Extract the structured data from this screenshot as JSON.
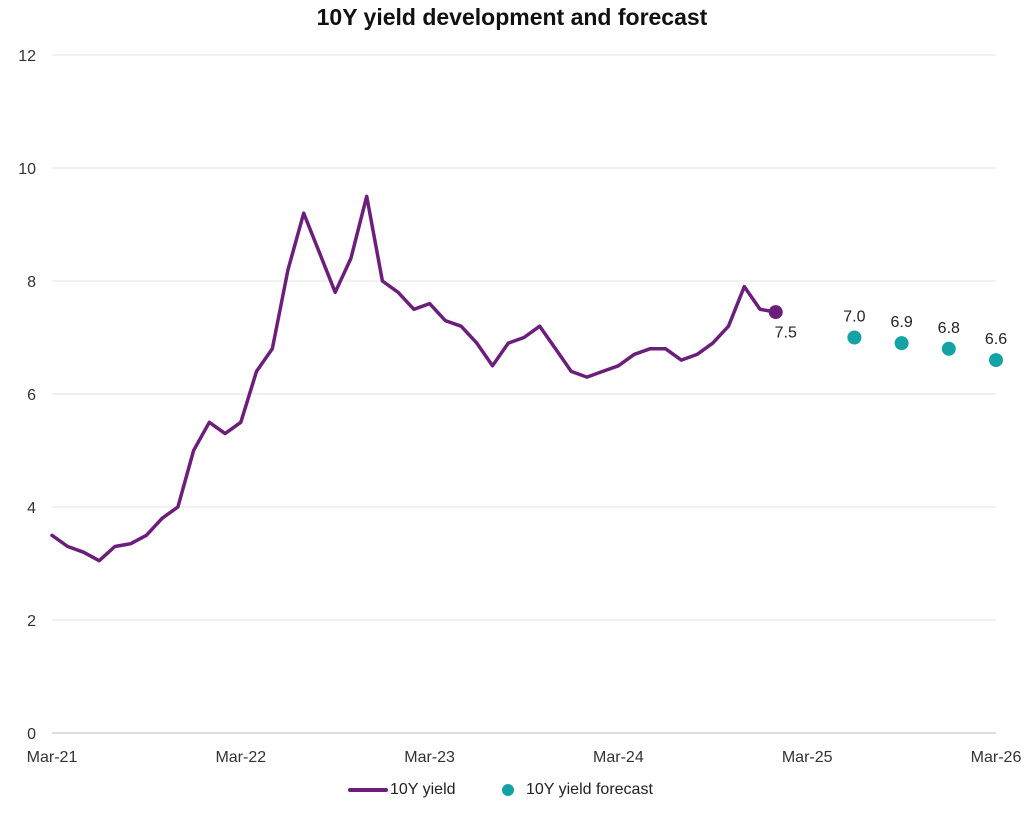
{
  "chart_data": {
    "type": "line",
    "title": "10Y yield development and forecast",
    "xlabel": "",
    "ylabel": "",
    "ylim": [
      0,
      12
    ],
    "yticks": [
      "0",
      "2",
      "4",
      "6",
      "8",
      "10",
      "12"
    ],
    "xticks": [
      "Mar-21",
      "Mar-22",
      "Mar-23",
      "Mar-24",
      "Mar-25",
      "Mar-26"
    ],
    "grid": "horizontal",
    "legend_position": "bottom",
    "colors": {
      "yield": "#6b1f7b",
      "forecast": "#13a3a5"
    },
    "series": [
      {
        "name": "10Y yield",
        "type": "line",
        "points": [
          [
            "2021-03",
            3.5
          ],
          [
            "2021-04",
            3.3
          ],
          [
            "2021-05",
            3.2
          ],
          [
            "2021-06",
            3.05
          ],
          [
            "2021-07",
            3.3
          ],
          [
            "2021-08",
            3.35
          ],
          [
            "2021-09",
            3.5
          ],
          [
            "2021-10",
            3.8
          ],
          [
            "2021-11",
            4.0
          ],
          [
            "2021-12",
            5.0
          ],
          [
            "2022-01",
            5.5
          ],
          [
            "2022-02",
            5.3
          ],
          [
            "2022-03",
            5.5
          ],
          [
            "2022-04",
            6.4
          ],
          [
            "2022-05",
            6.8
          ],
          [
            "2022-06",
            8.2
          ],
          [
            "2022-07",
            9.2
          ],
          [
            "2022-08",
            8.5
          ],
          [
            "2022-09",
            7.8
          ],
          [
            "2022-10",
            8.4
          ],
          [
            "2022-11",
            9.5
          ],
          [
            "2022-12",
            8.0
          ],
          [
            "2023-01",
            7.8
          ],
          [
            "2023-02",
            7.5
          ],
          [
            "2023-03",
            7.6
          ],
          [
            "2023-04",
            7.3
          ],
          [
            "2023-05",
            7.2
          ],
          [
            "2023-06",
            6.9
          ],
          [
            "2023-07",
            6.5
          ],
          [
            "2023-08",
            6.9
          ],
          [
            "2023-09",
            7.0
          ],
          [
            "2023-10",
            7.2
          ],
          [
            "2023-11",
            6.8
          ],
          [
            "2023-12",
            6.4
          ],
          [
            "2024-01",
            6.3
          ],
          [
            "2024-02",
            6.4
          ],
          [
            "2024-03",
            6.5
          ],
          [
            "2024-04",
            6.7
          ],
          [
            "2024-05",
            6.8
          ],
          [
            "2024-06",
            6.8
          ],
          [
            "2024-07",
            6.6
          ],
          [
            "2024-08",
            6.7
          ],
          [
            "2024-09",
            6.9
          ],
          [
            "2024-10",
            7.2
          ],
          [
            "2024-11",
            7.9
          ],
          [
            "2024-12",
            7.5
          ],
          [
            "2025-01",
            7.45
          ]
        ]
      },
      {
        "name": "10Y yield forecast",
        "type": "scatter",
        "points": [
          [
            "2025-01",
            7.5
          ],
          [
            "2025-06",
            7.0
          ],
          [
            "2025-09",
            6.9
          ],
          [
            "2025-12",
            6.8
          ],
          [
            "2026-03",
            6.6
          ]
        ],
        "labels": [
          "7.5",
          "7.0",
          "6.9",
          "6.8",
          "6.6"
        ]
      }
    ]
  }
}
